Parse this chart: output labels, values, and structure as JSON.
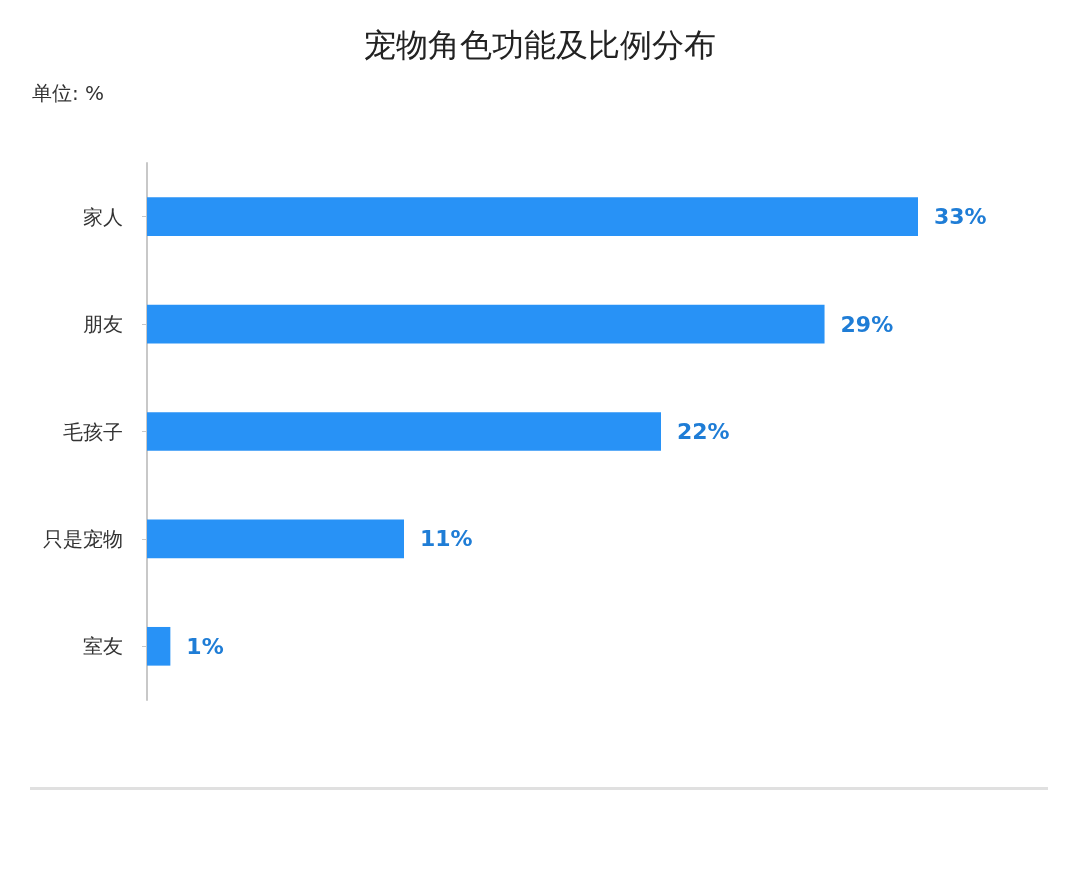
{
  "chart_data": {
    "type": "bar",
    "orientation": "horizontal",
    "title": "宠物角色功能及比例分布",
    "annotations": [
      "单位: %"
    ],
    "categories": [
      "家人",
      "朋友",
      "毛孩子",
      "只是宠物",
      "室友"
    ],
    "values": [
      33,
      29,
      22,
      11,
      1
    ],
    "value_labels": [
      "33%",
      "29%",
      "22%",
      "11%",
      "1%"
    ],
    "color": "#2892f6",
    "tick_labels": "y"
  }
}
